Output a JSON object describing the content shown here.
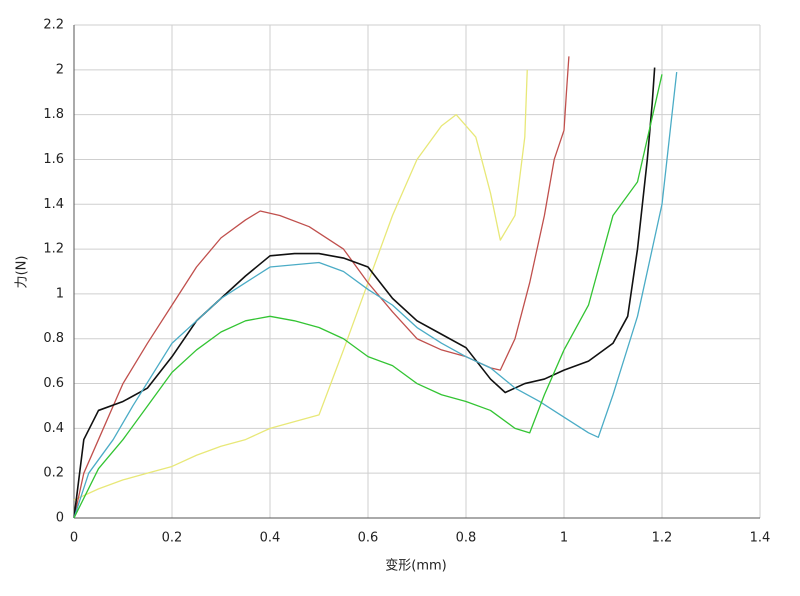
{
  "chart_data": {
    "type": "line",
    "x_label": "变形(mm)",
    "y_label": "力(N)",
    "xlim": [
      0,
      1.4
    ],
    "xticks": [
      0,
      0.2,
      0.4,
      0.6,
      0.8,
      1,
      1.2,
      1.4
    ],
    "ylim": [
      0,
      2.2
    ],
    "yticks": [
      0,
      0.2,
      0.4,
      0.6,
      0.8,
      1,
      1.2,
      1.4,
      1.6,
      1.8,
      2,
      2.2
    ],
    "grid": true,
    "series": [
      {
        "color": "#e8e878",
        "x": [
          0,
          0.05,
          0.1,
          0.15,
          0.2,
          0.25,
          0.3,
          0.35,
          0.4,
          0.45,
          0.5,
          0.55,
          0.6,
          0.65,
          0.7,
          0.75,
          0.78,
          0.82,
          0.85,
          0.87,
          0.9,
          0.92,
          0.925
        ],
        "values": [
          0.08,
          0.13,
          0.17,
          0.2,
          0.23,
          0.28,
          0.32,
          0.35,
          0.4,
          0.43,
          0.46,
          0.75,
          1.05,
          1.35,
          1.6,
          1.75,
          1.8,
          1.7,
          1.45,
          1.24,
          1.35,
          1.7,
          2.0
        ]
      },
      {
        "color": "#c0504d",
        "x": [
          0,
          0.02,
          0.05,
          0.1,
          0.15,
          0.2,
          0.25,
          0.3,
          0.35,
          0.38,
          0.42,
          0.48,
          0.55,
          0.6,
          0.65,
          0.7,
          0.75,
          0.8,
          0.85,
          0.87,
          0.9,
          0.93,
          0.96,
          0.98,
          1.0,
          1.005,
          1.01
        ],
        "values": [
          0,
          0.2,
          0.35,
          0.6,
          0.78,
          0.95,
          1.12,
          1.25,
          1.33,
          1.37,
          1.35,
          1.3,
          1.2,
          1.05,
          0.92,
          0.8,
          0.75,
          0.72,
          0.67,
          0.66,
          0.8,
          1.05,
          1.35,
          1.6,
          1.73,
          1.9,
          2.06
        ]
      },
      {
        "color": "#111111",
        "x": [
          0,
          0.02,
          0.05,
          0.1,
          0.15,
          0.2,
          0.25,
          0.3,
          0.35,
          0.4,
          0.45,
          0.5,
          0.55,
          0.6,
          0.65,
          0.7,
          0.75,
          0.8,
          0.85,
          0.88,
          0.92,
          0.96,
          1.0,
          1.05,
          1.1,
          1.13,
          1.15,
          1.17,
          1.18,
          1.185
        ],
        "values": [
          0,
          0.35,
          0.48,
          0.52,
          0.58,
          0.72,
          0.88,
          0.98,
          1.08,
          1.17,
          1.18,
          1.18,
          1.16,
          1.12,
          0.98,
          0.88,
          0.82,
          0.76,
          0.62,
          0.56,
          0.6,
          0.62,
          0.66,
          0.7,
          0.78,
          0.9,
          1.2,
          1.6,
          1.85,
          2.01
        ]
      },
      {
        "color": "#4bacc6",
        "x": [
          0,
          0.03,
          0.08,
          0.12,
          0.2,
          0.25,
          0.3,
          0.35,
          0.4,
          0.45,
          0.5,
          0.55,
          0.6,
          0.65,
          0.7,
          0.75,
          0.8,
          0.85,
          0.9,
          0.95,
          1.0,
          1.05,
          1.07,
          1.1,
          1.15,
          1.2,
          1.23
        ],
        "values": [
          0,
          0.2,
          0.35,
          0.5,
          0.78,
          0.88,
          0.98,
          1.05,
          1.12,
          1.13,
          1.14,
          1.1,
          1.02,
          0.95,
          0.85,
          0.78,
          0.72,
          0.67,
          0.58,
          0.52,
          0.45,
          0.38,
          0.36,
          0.55,
          0.9,
          1.4,
          1.99
        ]
      },
      {
        "color": "#33c433",
        "x": [
          0,
          0.05,
          0.1,
          0.15,
          0.2,
          0.25,
          0.3,
          0.35,
          0.4,
          0.45,
          0.5,
          0.55,
          0.6,
          0.65,
          0.7,
          0.75,
          0.8,
          0.85,
          0.9,
          0.93,
          0.96,
          1.0,
          1.05,
          1.1,
          1.15,
          1.2
        ],
        "values": [
          0,
          0.22,
          0.35,
          0.5,
          0.65,
          0.75,
          0.83,
          0.88,
          0.9,
          0.88,
          0.85,
          0.8,
          0.72,
          0.68,
          0.6,
          0.55,
          0.52,
          0.48,
          0.4,
          0.38,
          0.55,
          0.75,
          0.95,
          1.35,
          1.5,
          1.98
        ]
      }
    ]
  }
}
